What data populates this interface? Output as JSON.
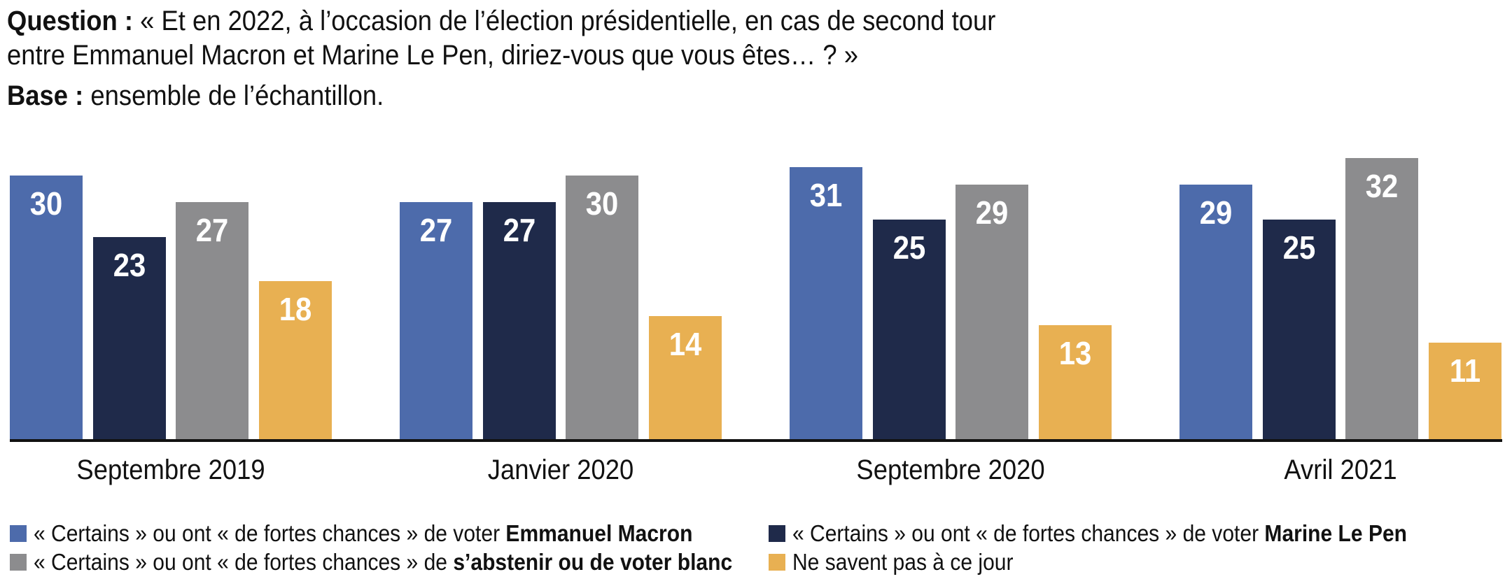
{
  "header": {
    "question_label": "Question :",
    "question_line1": "« Et en 2022, à l’occasion de l’élection présidentielle, en cas de second tour",
    "question_line2": "entre Emmanuel Macron et Marine Le Pen, diriez-vous que vous êtes… ? »",
    "base_label": "Base :",
    "base_text": "ensemble de l’échantillon."
  },
  "colors": {
    "macron_blue": "#4D6BAB",
    "lepen_navy": "#1F2A4A",
    "abstain_gray": "#8C8C8E",
    "unknown_yellow": "#E8B052",
    "axis_black": "#111111",
    "value_label_white": "#FFFFFF"
  },
  "chart_data": {
    "type": "bar",
    "categories": [
      "Septembre 2019",
      "Janvier 2020",
      "Septembre 2020",
      "Avril 2021"
    ],
    "series": [
      {
        "key": "macron",
        "name": "« Certains » ou ont « de fortes chances » de voter Emmanuel Macron",
        "color_key": "macron_blue",
        "values": [
          30,
          27,
          31,
          29
        ]
      },
      {
        "key": "lepen",
        "name": "« Certains » ou ont « de fortes chances » de voter Marine Le Pen",
        "color_key": "lepen_navy",
        "values": [
          23,
          27,
          25,
          25
        ]
      },
      {
        "key": "abstention",
        "name": "« Certains » ou ont « de fortes chances » de s’abstenir ou de voter blanc",
        "color_key": "abstain_gray",
        "values": [
          27,
          30,
          29,
          32
        ]
      },
      {
        "key": "ne-savent-pas",
        "name": "Ne savent pas à ce jour",
        "color_key": "unknown_yellow",
        "values": [
          18,
          14,
          13,
          11
        ]
      }
    ],
    "ylim": [
      0,
      33
    ],
    "grid": false,
    "legend_position": "bottom",
    "value_labels": "inside-top"
  },
  "legend": {
    "items": [
      {
        "key": "macron",
        "color_key": "macron_blue",
        "text": "« Certains » ou ont « de fortes chances » de voter ",
        "bold": "Emmanuel Macron"
      },
      {
        "key": "lepen",
        "color_key": "lepen_navy",
        "text": "« Certains » ou ont « de fortes chances » de voter ",
        "bold": "Marine Le Pen"
      },
      {
        "key": "abstention",
        "color_key": "abstain_gray",
        "text": "« Certains » ou ont « de fortes chances » de ",
        "bold": "s’abstenir ou de voter blanc"
      },
      {
        "key": "ne-savent-pas",
        "color_key": "unknown_yellow",
        "text": "Ne savent pas à ce jour",
        "bold": ""
      }
    ]
  }
}
